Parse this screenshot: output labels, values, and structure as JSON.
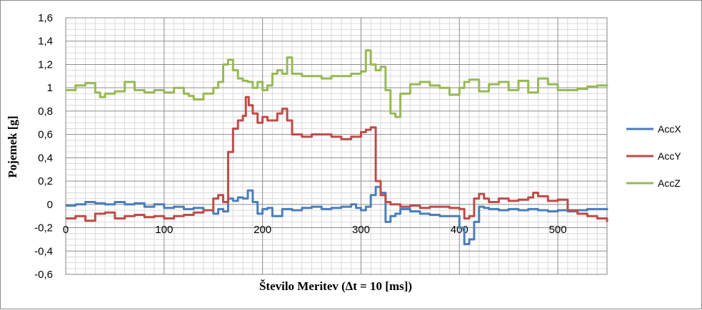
{
  "chart_data": {
    "type": "line",
    "title": "",
    "xlabel": "Število Meritev (∆t = 10 [ms])",
    "ylabel": "Pojemek [g]",
    "xlim": [
      0,
      550
    ],
    "ylim": [
      -0.6,
      1.6
    ],
    "x_ticks": [
      0,
      100,
      200,
      300,
      400,
      500
    ],
    "x_tick_labels": [
      "0",
      "100",
      "200",
      "300",
      "400",
      "500"
    ],
    "y_ticks": [
      -0.6,
      -0.4,
      -0.2,
      0,
      0.2,
      0.4,
      0.6,
      0.8,
      1.0,
      1.2,
      1.4,
      1.6
    ],
    "y_tick_labels": [
      "-0,6",
      "-0,4",
      "-0,2",
      "0",
      "0,2",
      "0,4",
      "0,6",
      "0,8",
      "1",
      "1,2",
      "1,4",
      "1,6"
    ],
    "grid": {
      "major": true,
      "minor_vertical": true,
      "minor_horizontal": true
    },
    "legend": "right",
    "series": [
      {
        "name": "AccX",
        "color": "#4a7ebb",
        "x": [
          0,
          10,
          20,
          30,
          40,
          50,
          60,
          70,
          80,
          90,
          100,
          110,
          120,
          130,
          140,
          150,
          155,
          160,
          165,
          170,
          175,
          180,
          185,
          190,
          195,
          200,
          205,
          210,
          220,
          230,
          240,
          250,
          260,
          270,
          280,
          290,
          295,
          300,
          305,
          310,
          315,
          320,
          325,
          330,
          335,
          340,
          350,
          360,
          370,
          380,
          390,
          395,
          400,
          405,
          410,
          415,
          420,
          425,
          430,
          440,
          450,
          460,
          470,
          480,
          490,
          500,
          510,
          520,
          530,
          540,
          550
        ],
        "y": [
          -0.01,
          0.0,
          0.02,
          0.01,
          0.0,
          0.02,
          0.0,
          0.01,
          -0.02,
          0.0,
          -0.03,
          -0.02,
          -0.04,
          -0.03,
          -0.05,
          -0.08,
          -0.04,
          -0.06,
          0.05,
          0.03,
          0.06,
          0.05,
          0.12,
          0.02,
          -0.08,
          -0.04,
          -0.03,
          -0.1,
          -0.04,
          -0.05,
          -0.03,
          -0.02,
          -0.04,
          -0.03,
          -0.02,
          0.0,
          -0.03,
          -0.05,
          -0.02,
          0.08,
          0.15,
          0.1,
          -0.15,
          -0.1,
          -0.08,
          -0.04,
          -0.06,
          -0.08,
          -0.09,
          -0.1,
          -0.1,
          -0.1,
          -0.2,
          -0.34,
          -0.3,
          -0.15,
          -0.02,
          -0.03,
          -0.04,
          -0.05,
          -0.04,
          -0.05,
          -0.04,
          -0.05,
          -0.06,
          -0.05,
          -0.06,
          -0.05,
          -0.04,
          -0.04,
          -0.05
        ]
      },
      {
        "name": "AccY",
        "color": "#be4b48",
        "x": [
          0,
          10,
          20,
          30,
          40,
          50,
          60,
          70,
          80,
          90,
          100,
          110,
          120,
          130,
          140,
          150,
          155,
          160,
          165,
          170,
          175,
          180,
          183,
          186,
          190,
          195,
          200,
          205,
          210,
          215,
          220,
          225,
          230,
          240,
          250,
          260,
          270,
          280,
          290,
          300,
          305,
          310,
          315,
          320,
          325,
          330,
          340,
          350,
          360,
          370,
          380,
          390,
          400,
          405,
          410,
          415,
          420,
          425,
          430,
          440,
          450,
          460,
          470,
          475,
          480,
          490,
          500,
          510,
          520,
          530,
          540,
          550
        ],
        "y": [
          -0.12,
          -0.1,
          -0.14,
          -0.08,
          -0.07,
          -0.12,
          -0.1,
          -0.09,
          -0.11,
          -0.1,
          -0.12,
          -0.1,
          -0.09,
          -0.07,
          -0.05,
          0.05,
          0.08,
          0.02,
          0.45,
          0.65,
          0.72,
          0.76,
          0.92,
          0.85,
          0.78,
          0.7,
          0.75,
          0.72,
          0.72,
          0.78,
          0.82,
          0.72,
          0.6,
          0.58,
          0.6,
          0.6,
          0.58,
          0.56,
          0.58,
          0.62,
          0.64,
          0.66,
          0.2,
          0.08,
          0.02,
          0.0,
          -0.02,
          -0.01,
          -0.03,
          -0.02,
          -0.02,
          -0.03,
          -0.04,
          -0.12,
          -0.1,
          0.05,
          0.09,
          0.05,
          0.02,
          0.05,
          0.03,
          0.04,
          0.06,
          0.1,
          0.07,
          0.03,
          0.04,
          -0.05,
          -0.08,
          -0.1,
          -0.12,
          -0.15
        ]
      },
      {
        "name": "AccZ",
        "color": "#98b954",
        "x": [
          0,
          10,
          20,
          30,
          35,
          40,
          50,
          60,
          70,
          80,
          90,
          100,
          110,
          120,
          125,
          130,
          140,
          150,
          155,
          160,
          165,
          170,
          175,
          180,
          185,
          190,
          195,
          200,
          205,
          210,
          215,
          220,
          225,
          230,
          240,
          250,
          260,
          270,
          280,
          290,
          300,
          305,
          310,
          315,
          320,
          325,
          330,
          335,
          340,
          350,
          360,
          370,
          380,
          390,
          400,
          405,
          410,
          420,
          430,
          440,
          450,
          460,
          470,
          480,
          490,
          500,
          510,
          520,
          530,
          540,
          550
        ],
        "y": [
          0.98,
          1.02,
          1.04,
          0.96,
          0.92,
          0.95,
          0.97,
          1.05,
          0.98,
          0.96,
          0.98,
          0.96,
          1.0,
          0.95,
          0.93,
          0.9,
          0.95,
          1.0,
          1.05,
          1.2,
          1.24,
          1.15,
          1.08,
          1.06,
          1.05,
          1.0,
          1.05,
          0.98,
          1.02,
          1.12,
          1.15,
          1.12,
          1.26,
          1.12,
          1.1,
          1.1,
          1.08,
          1.1,
          1.1,
          1.12,
          1.14,
          1.32,
          1.2,
          1.15,
          1.18,
          0.98,
          0.78,
          0.75,
          0.95,
          1.03,
          1.05,
          1.02,
          1.0,
          0.94,
          1.0,
          1.05,
          1.07,
          0.97,
          1.03,
          1.05,
          0.98,
          1.06,
          0.96,
          1.08,
          1.03,
          0.98,
          0.98,
          0.99,
          1.01,
          1.02,
          1.01
        ]
      }
    ]
  }
}
